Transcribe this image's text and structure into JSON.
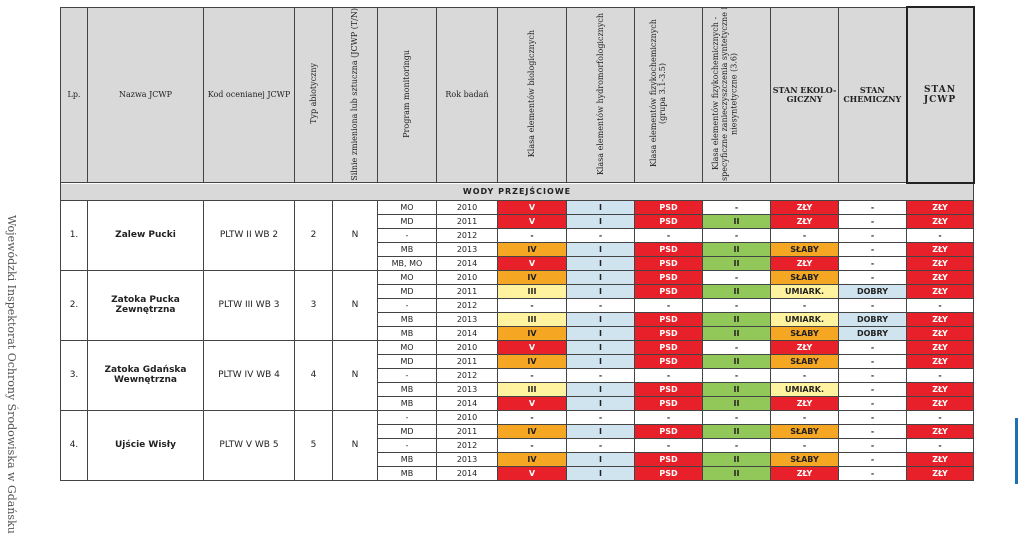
{
  "side_text": "Wojewódzki Inspektorat Ochrony Środowiska w Gdańsku",
  "headers": {
    "lp": "Lp.",
    "nazwa": "Nazwa JCWP",
    "kod": "Kod ocenianej JCWP",
    "typ": "Typ abiotyczny",
    "silnie": "Silnie zmieniona lub sztuczna (JCWP (T/N)",
    "program": "Program monitoringu",
    "rok": "Rok badań",
    "klasa_bio": "Klasa elementów biologicznych",
    "klasa_hydro": "Klasa elementów hydromorfologicznych",
    "klasa_fiz": "Klasa elementów fizykochemicznych (grupa 3.1-3.5)",
    "klasa_fiz36": "Klasa elementów fizykochemicznych - specyficzne zanieczyszczenia syntetyczne i niesyntetyczne (3.6)",
    "stan_eko": "STAN EKOLO-GICZNY",
    "stan_chem": "STAN CHEMICZNY",
    "stan_jcwp": "STAN JCWP"
  },
  "group_label": "WODY PRZEJŚCIOWE",
  "water_bodies": [
    {
      "lp": "1.",
      "nazwa": "Zalew Pucki",
      "kod": "PLTW II WB 2",
      "typ": "2",
      "silnie": "N",
      "rows": [
        {
          "program": "MO",
          "rok": "2010",
          "bio": "V",
          "hydro": "I",
          "fiz": "PSD",
          "fiz36": "-",
          "eko": "ZŁY",
          "chem": "-",
          "jcwp": "ZŁY"
        },
        {
          "program": "MD",
          "rok": "2011",
          "bio": "V",
          "hydro": "I",
          "fiz": "PSD",
          "fiz36": "II",
          "eko": "ZŁY",
          "chem": "-",
          "jcwp": "ZŁY"
        },
        {
          "program": "-",
          "rok": "2012",
          "bio": "-",
          "hydro": "-",
          "fiz": "-",
          "fiz36": "-",
          "eko": "-",
          "chem": "-",
          "jcwp": "-"
        },
        {
          "program": "MB",
          "rok": "2013",
          "bio": "IV",
          "hydro": "I",
          "fiz": "PSD",
          "fiz36": "II",
          "eko": "SŁABY",
          "chem": "-",
          "jcwp": "ZŁY"
        },
        {
          "program": "MB, MO",
          "rok": "2014",
          "bio": "V",
          "hydro": "I",
          "fiz": "PSD",
          "fiz36": "II",
          "eko": "ZŁY",
          "chem": "-",
          "jcwp": "ZŁY"
        }
      ]
    },
    {
      "lp": "2.",
      "nazwa": "Zatoka Pucka Zewnętrzna",
      "kod": "PLTW III WB 3",
      "typ": "3",
      "silnie": "N",
      "rows": [
        {
          "program": "MO",
          "rok": "2010",
          "bio": "IV",
          "hydro": "I",
          "fiz": "PSD",
          "fiz36": "-",
          "eko": "SŁABY",
          "chem": "-",
          "jcwp": "ZŁY"
        },
        {
          "program": "MD",
          "rok": "2011",
          "bio": "III",
          "hydro": "I",
          "fiz": "PSD",
          "fiz36": "II",
          "eko": "UMIARK.",
          "chem": "DOBRY",
          "jcwp": "ZŁY"
        },
        {
          "program": "-",
          "rok": "2012",
          "bio": "-",
          "hydro": "-",
          "fiz": "-",
          "fiz36": "-",
          "eko": "-",
          "chem": "-",
          "jcwp": "-"
        },
        {
          "program": "MB",
          "rok": "2013",
          "bio": "III",
          "hydro": "I",
          "fiz": "PSD",
          "fiz36": "II",
          "eko": "UMIARK.",
          "chem": "DOBRY",
          "jcwp": "ZŁY"
        },
        {
          "program": "MB",
          "rok": "2014",
          "bio": "IV",
          "hydro": "I",
          "fiz": "PSD",
          "fiz36": "II",
          "eko": "SŁABY",
          "chem": "DOBRY",
          "jcwp": "ZŁY"
        }
      ]
    },
    {
      "lp": "3.",
      "nazwa": "Zatoka Gdańska Wewnętrzna",
      "kod": "PLTW IV WB 4",
      "typ": "4",
      "silnie": "N",
      "rows": [
        {
          "program": "MO",
          "rok": "2010",
          "bio": "V",
          "hydro": "I",
          "fiz": "PSD",
          "fiz36": "-",
          "eko": "ZŁY",
          "chem": "-",
          "jcwp": "ZŁY"
        },
        {
          "program": "MD",
          "rok": "2011",
          "bio": "IV",
          "hydro": "I",
          "fiz": "PSD",
          "fiz36": "II",
          "eko": "SŁABY",
          "chem": "-",
          "jcwp": "ZŁY"
        },
        {
          "program": "-",
          "rok": "2012",
          "bio": "-",
          "hydro": "-",
          "fiz": "-",
          "fiz36": "-",
          "eko": "-",
          "chem": "-",
          "jcwp": "-"
        },
        {
          "program": "MB",
          "rok": "2013",
          "bio": "III",
          "hydro": "I",
          "fiz": "PSD",
          "fiz36": "II",
          "eko": "UMIARK.",
          "chem": "-",
          "jcwp": "ZŁY"
        },
        {
          "program": "MB",
          "rok": "2014",
          "bio": "V",
          "hydro": "I",
          "fiz": "PSD",
          "fiz36": "II",
          "eko": "ZŁY",
          "chem": "-",
          "jcwp": "ZŁY"
        }
      ]
    },
    {
      "lp": "4.",
      "nazwa": "Ujście Wisły",
      "kod": "PLTW V WB 5",
      "typ": "5",
      "silnie": "N",
      "rows": [
        {
          "program": "-",
          "rok": "2010",
          "bio": "-",
          "hydro": "-",
          "fiz": "-",
          "fiz36": "-",
          "eko": "-",
          "chem": "-",
          "jcwp": "-"
        },
        {
          "program": "MD",
          "rok": "2011",
          "bio": "IV",
          "hydro": "I",
          "fiz": "PSD",
          "fiz36": "II",
          "eko": "SŁABY",
          "chem": "-",
          "jcwp": "ZŁY"
        },
        {
          "program": "-",
          "rok": "2012",
          "bio": "-",
          "hydro": "-",
          "fiz": "-",
          "fiz36": "-",
          "eko": "-",
          "chem": "-",
          "jcwp": "-"
        },
        {
          "program": "MB",
          "rok": "2013",
          "bio": "IV",
          "hydro": "I",
          "fiz": "PSD",
          "fiz36": "II",
          "eko": "SŁABY",
          "chem": "-",
          "jcwp": "ZŁY"
        },
        {
          "program": "MB",
          "rok": "2014",
          "bio": "V",
          "hydro": "I",
          "fiz": "PSD",
          "fiz36": "II",
          "eko": "ZŁY",
          "chem": "-",
          "jcwp": "ZŁY"
        }
      ]
    }
  ],
  "colors": {
    "red": "#e8202a",
    "orange": "#f5a623",
    "yellow": "#fff3a0",
    "blue": "#cfe4ee",
    "green": "#92c85a",
    "header_gray": "#d9d9d9",
    "accent_bar": "#1f6fb5"
  }
}
